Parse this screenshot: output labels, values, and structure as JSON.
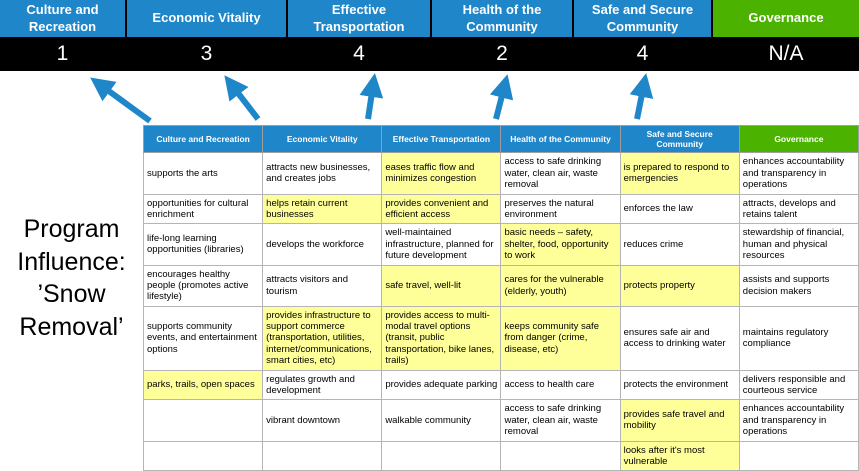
{
  "colors": {
    "header_blue": "#1F86C9",
    "header_green": "#4CB200",
    "score_band_bg": "#000000",
    "highlight_yellow": "#FFFF99",
    "arrow_blue": "#1F86C9",
    "cell_border": "#B5B5B5"
  },
  "program_label": "Program Influence: ’Snow Removal’",
  "summary": {
    "columns": [
      {
        "label": "Culture and Recreation",
        "score": "1",
        "theme": "blue"
      },
      {
        "label": "Economic Vitality",
        "score": "3",
        "theme": "blue"
      },
      {
        "label": "Effective Transportation",
        "score": "4",
        "theme": "blue"
      },
      {
        "label": "Health of the Community",
        "score": "2",
        "theme": "blue"
      },
      {
        "label": "Safe and Secure Community",
        "score": "4",
        "theme": "blue"
      },
      {
        "label": "Governance",
        "score": "N/A",
        "theme": "green"
      }
    ]
  },
  "table": {
    "headers": [
      {
        "label": "Culture and Recreation",
        "theme": "blue"
      },
      {
        "label": "Economic Vitality",
        "theme": "blue"
      },
      {
        "label": "Effective Transportation",
        "theme": "blue"
      },
      {
        "label": "Health of the Community",
        "theme": "blue"
      },
      {
        "label": "Safe and Secure Community",
        "theme": "blue"
      },
      {
        "label": "Governance",
        "theme": "green"
      }
    ],
    "rows": [
      [
        {
          "text": "supports the arts",
          "highlight": false
        },
        {
          "text": "attracts new businesses, and creates jobs",
          "highlight": false
        },
        {
          "text": "eases traffic flow and minimizes congestion",
          "highlight": true
        },
        {
          "text": "access to safe drinking water, clean air, waste removal",
          "highlight": false
        },
        {
          "text": "is prepared to respond to emergencies",
          "highlight": true
        },
        {
          "text": "enhances accountability and transparency in operations",
          "highlight": false
        }
      ],
      [
        {
          "text": "opportunities for cultural enrichment",
          "highlight": false
        },
        {
          "text": "helps retain current businesses",
          "highlight": true
        },
        {
          "text": "provides convenient and efficient access",
          "highlight": true
        },
        {
          "text": "preserves the natural environment",
          "highlight": false
        },
        {
          "text": "enforces the law",
          "highlight": false
        },
        {
          "text": "attracts, develops and retains talent",
          "highlight": false
        }
      ],
      [
        {
          "text": "life-long learning opportunities (libraries)",
          "highlight": false
        },
        {
          "text": "develops the workforce",
          "highlight": false
        },
        {
          "text": "well-maintained infrastructure, planned for future development",
          "highlight": false
        },
        {
          "text": "basic needs – safety, shelter, food, opportunity to work",
          "highlight": true
        },
        {
          "text": "reduces crime",
          "highlight": false
        },
        {
          "text": "stewardship of financial, human and physical resources",
          "highlight": false
        }
      ],
      [
        {
          "text": "encourages healthy people (promotes active lifestyle)",
          "highlight": false
        },
        {
          "text": "attracts visitors and tourism",
          "highlight": false
        },
        {
          "text": "safe travel, well-lit",
          "highlight": true
        },
        {
          "text": "cares for the vulnerable (elderly, youth)",
          "highlight": true
        },
        {
          "text": "protects property",
          "highlight": true
        },
        {
          "text": "assists and supports decision makers",
          "highlight": false
        }
      ],
      [
        {
          "text": "supports community events, and entertainment options",
          "highlight": false
        },
        {
          "text": "provides infrastructure to support commerce (transportation, utilities, internet/communications, smart cities, etc)",
          "highlight": true
        },
        {
          "text": "provides access to multi-modal travel options (transit, public transportation, bike lanes, trails)",
          "highlight": true
        },
        {
          "text": "keeps community safe from danger (crime, disease, etc)",
          "highlight": true
        },
        {
          "text": "ensures safe air and access to drinking water",
          "highlight": false
        },
        {
          "text": "maintains regulatory compliance",
          "highlight": false
        }
      ],
      [
        {
          "text": "parks, trails, open spaces",
          "highlight": true
        },
        {
          "text": "regulates growth and development",
          "highlight": false
        },
        {
          "text": "provides adequate parking",
          "highlight": false
        },
        {
          "text": "access to health care",
          "highlight": false
        },
        {
          "text": "protects the environment",
          "highlight": false
        },
        {
          "text": "delivers responsible and courteous service",
          "highlight": false
        }
      ],
      [
        {
          "text": "",
          "highlight": false
        },
        {
          "text": "vibrant downtown",
          "highlight": false
        },
        {
          "text": "walkable community",
          "highlight": false
        },
        {
          "text": "access to safe drinking water, clean air, waste removal",
          "highlight": false
        },
        {
          "text": "provides safe travel and mobility",
          "highlight": true
        },
        {
          "text": "enhances accountability and transparency in operations",
          "highlight": false
        }
      ],
      [
        {
          "text": "",
          "highlight": false
        },
        {
          "text": "",
          "highlight": false
        },
        {
          "text": "",
          "highlight": false
        },
        {
          "text": "",
          "highlight": false
        },
        {
          "text": "looks after it's most vulnerable",
          "highlight": true
        },
        {
          "text": "",
          "highlight": false
        }
      ]
    ]
  }
}
